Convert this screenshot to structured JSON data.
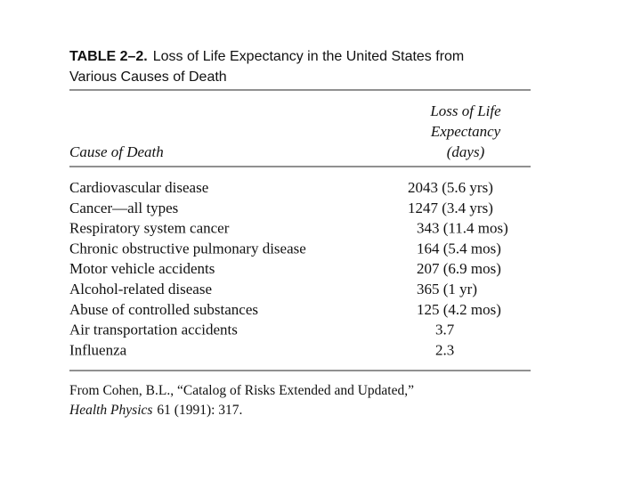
{
  "table": {
    "label": "TABLE 2–2.",
    "title_lines": [
      "Loss of Life Expectancy in the United States from",
      "Various Causes of Death"
    ],
    "header": {
      "cause": "Cause of Death",
      "loss": [
        "Loss of Life",
        "Expectancy",
        "(days)"
      ]
    },
    "rows": [
      [
        "Cardiovascular disease",
        "2043 (5.6 yrs)"
      ],
      [
        "Cancer—all types",
        "1247 (3.4 yrs)"
      ],
      [
        "Respiratory system cancer",
        "343 (11.4 mos)"
      ],
      [
        "Chronic obstructive pulmonary disease",
        "164 (5.4 mos)"
      ],
      [
        "Motor vehicle accidents",
        "207 (6.9 mos)"
      ],
      [
        "Alcohol-related disease",
        "365 (1 yr)"
      ],
      [
        "Abuse of controlled substances",
        "125 (4.2 mos)"
      ],
      [
        "Air transportation accidents",
        "3.7"
      ],
      [
        "Influenza",
        "2.3"
      ]
    ],
    "source": {
      "line1": "From Cohen, B.L., “Catalog of Risks Extended and Updated,”",
      "journal": "Health Physics",
      "citation": "61 (1991): 317."
    }
  }
}
